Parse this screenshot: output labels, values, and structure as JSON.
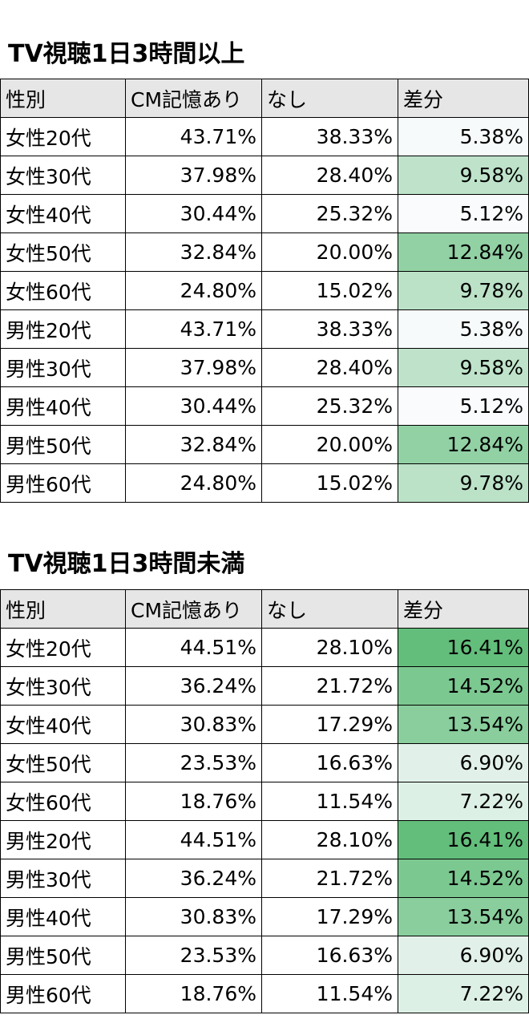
{
  "colors": {
    "header_bg": "#e6e6e6",
    "scale_low": "#f9fbfd",
    "scale_high": "#63be7b"
  },
  "sections": [
    {
      "title": "TV視聴1日3時間以上",
      "columns": [
        "性別",
        "CM記憶あり",
        "なし",
        "差分"
      ],
      "rows": [
        {
          "label": "女性20代",
          "recall": "43.71%",
          "none": "38.33%",
          "diff": "5.38%",
          "diff_value": 5.38
        },
        {
          "label": "女性30代",
          "recall": "37.98%",
          "none": "28.40%",
          "diff": "9.58%",
          "diff_value": 9.58
        },
        {
          "label": "女性40代",
          "recall": "30.44%",
          "none": "25.32%",
          "diff": "5.12%",
          "diff_value": 5.12
        },
        {
          "label": "女性50代",
          "recall": "32.84%",
          "none": "20.00%",
          "diff": "12.84%",
          "diff_value": 12.84
        },
        {
          "label": "女性60代",
          "recall": "24.80%",
          "none": "15.02%",
          "diff": "9.78%",
          "diff_value": 9.78
        },
        {
          "label": "男性20代",
          "recall": "43.71%",
          "none": "38.33%",
          "diff": "5.38%",
          "diff_value": 5.38
        },
        {
          "label": "男性30代",
          "recall": "37.98%",
          "none": "28.40%",
          "diff": "9.58%",
          "diff_value": 9.58
        },
        {
          "label": "男性40代",
          "recall": "30.44%",
          "none": "25.32%",
          "diff": "5.12%",
          "diff_value": 5.12
        },
        {
          "label": "男性50代",
          "recall": "32.84%",
          "none": "20.00%",
          "diff": "12.84%",
          "diff_value": 12.84
        },
        {
          "label": "男性60代",
          "recall": "24.80%",
          "none": "15.02%",
          "diff": "9.78%",
          "diff_value": 9.78
        }
      ]
    },
    {
      "title": "TV視聴1日3時間未満",
      "columns": [
        "性別",
        "CM記憶あり",
        "なし",
        "差分"
      ],
      "rows": [
        {
          "label": "女性20代",
          "recall": "44.51%",
          "none": "28.10%",
          "diff": "16.41%",
          "diff_value": 16.41
        },
        {
          "label": "女性30代",
          "recall": "36.24%",
          "none": "21.72%",
          "diff": "14.52%",
          "diff_value": 14.52
        },
        {
          "label": "女性40代",
          "recall": "30.83%",
          "none": "17.29%",
          "diff": "13.54%",
          "diff_value": 13.54
        },
        {
          "label": "女性50代",
          "recall": "23.53%",
          "none": "16.63%",
          "diff": "6.90%",
          "diff_value": 6.9
        },
        {
          "label": "女性60代",
          "recall": "18.76%",
          "none": "11.54%",
          "diff": "7.22%",
          "diff_value": 7.22
        },
        {
          "label": "男性20代",
          "recall": "44.51%",
          "none": "28.10%",
          "diff": "16.41%",
          "diff_value": 16.41
        },
        {
          "label": "男性30代",
          "recall": "36.24%",
          "none": "21.72%",
          "diff": "14.52%",
          "diff_value": 14.52
        },
        {
          "label": "男性40代",
          "recall": "30.83%",
          "none": "17.29%",
          "diff": "13.54%",
          "diff_value": 13.54
        },
        {
          "label": "男性50代",
          "recall": "23.53%",
          "none": "16.63%",
          "diff": "6.90%",
          "diff_value": 6.9
        },
        {
          "label": "男性60代",
          "recall": "18.76%",
          "none": "11.54%",
          "diff": "7.22%",
          "diff_value": 7.22
        }
      ]
    }
  ]
}
